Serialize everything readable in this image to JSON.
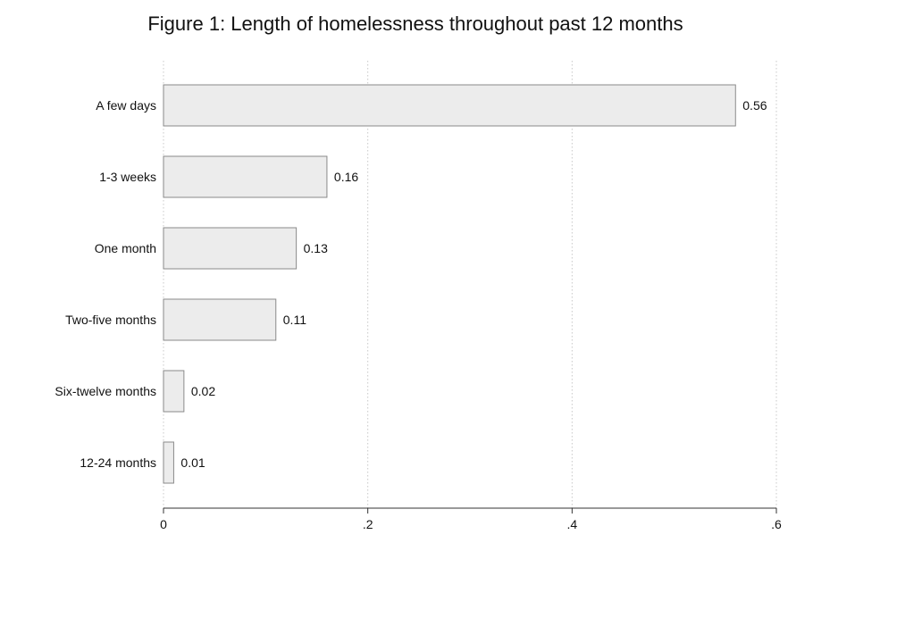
{
  "chart_data": {
    "type": "bar",
    "orientation": "horizontal",
    "title": "Figure 1: Length of homelessness throughout past 12 months",
    "xlabel": "",
    "ylabel": "",
    "categories": [
      "A few days",
      "1-3 weeks",
      "One month",
      "Two-five months",
      "Six-twelve months",
      "12-24 months"
    ],
    "values": [
      0.56,
      0.16,
      0.13,
      0.11,
      0.02,
      0.01
    ],
    "value_labels": [
      "0.56",
      "0.16",
      "0.13",
      "0.11",
      "0.02",
      "0.01"
    ],
    "xlim": [
      0,
      0.6
    ],
    "xticks": [
      0,
      0.2,
      0.4,
      0.6
    ],
    "xtick_labels": [
      "0",
      ".2",
      ".4",
      ".6"
    ],
    "grid": "vertical dotted",
    "colors": {
      "bar_fill": "#ececec",
      "bar_stroke": "#8a8a8a",
      "grid": "#c8c8c8",
      "axis": "#333333"
    }
  }
}
